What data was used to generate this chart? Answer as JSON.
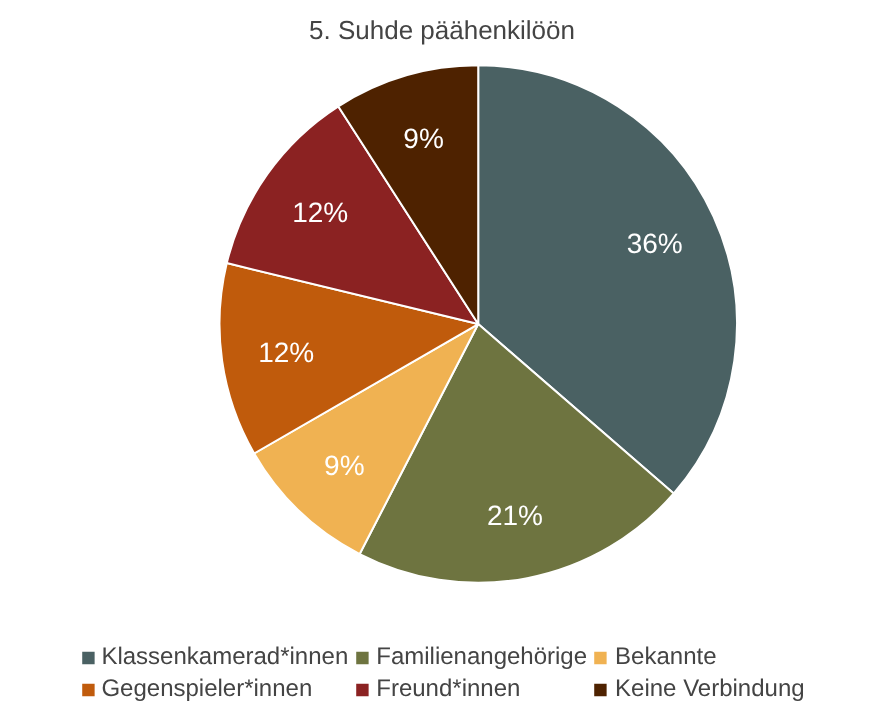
{
  "chart_data": {
    "type": "pie",
    "title": "5. Suhde päähenkilöön",
    "categories": [
      "Klassenkamerad*innen",
      "Familienangehörige",
      "Bekannte",
      "Gegenspieler*innen",
      "Freund*innen",
      "Keine Verbindung"
    ],
    "values": [
      36,
      21,
      9,
      12,
      12,
      9
    ],
    "value_labels": [
      "36%",
      "21%",
      "9%",
      "12%",
      "12%",
      "9%"
    ],
    "colors": [
      "#4a6163",
      "#6e7440",
      "#f0b252",
      "#c05b0c",
      "#8b2222",
      "#4e2200"
    ],
    "legend": "bottom"
  }
}
